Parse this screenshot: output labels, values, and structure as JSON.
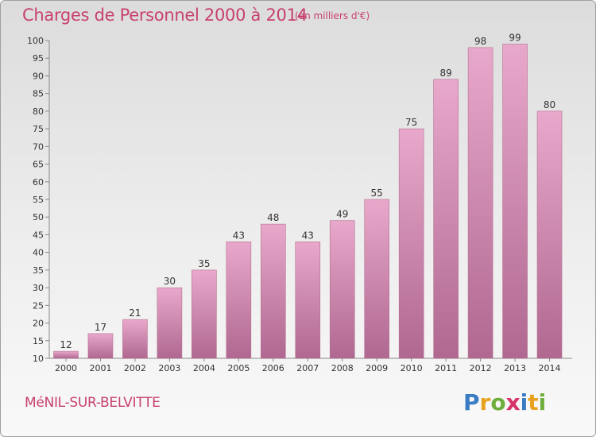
{
  "title": "Charges de Personnel 2000 à 2014",
  "subtitle": "(en milliers d'€)",
  "commune": "MéNIL-SUR-BELVITTE",
  "logo": {
    "letters": [
      {
        "char": "P",
        "color": "#3a7cc3"
      },
      {
        "char": "r",
        "color": "#e8a21f"
      },
      {
        "char": "o",
        "color": "#6fae3c"
      },
      {
        "char": "x",
        "color": "#d6336a"
      },
      {
        "char": "i",
        "color": "#3a7cc3"
      },
      {
        "char": "t",
        "color": "#e8a21f"
      },
      {
        "char": "i",
        "color": "#6fae3c"
      }
    ]
  },
  "colors": {
    "accent": "#c8416c",
    "bar_light": "#e8a8c8",
    "bar_dark": "#b06890"
  },
  "chart_data": {
    "type": "bar",
    "categories": [
      "2000",
      "2001",
      "2002",
      "2003",
      "2004",
      "2005",
      "2006",
      "2007",
      "2008",
      "2009",
      "2010",
      "2011",
      "2012",
      "2013",
      "2014"
    ],
    "values": [
      12,
      17,
      21,
      30,
      35,
      43,
      48,
      43,
      49,
      55,
      75,
      89,
      98,
      99,
      80
    ],
    "ylim": [
      10,
      100
    ],
    "yticks": [
      10,
      15,
      20,
      25,
      30,
      35,
      40,
      45,
      50,
      55,
      60,
      65,
      70,
      75,
      80,
      85,
      90,
      95,
      100
    ],
    "grid": false,
    "legend": "none"
  }
}
